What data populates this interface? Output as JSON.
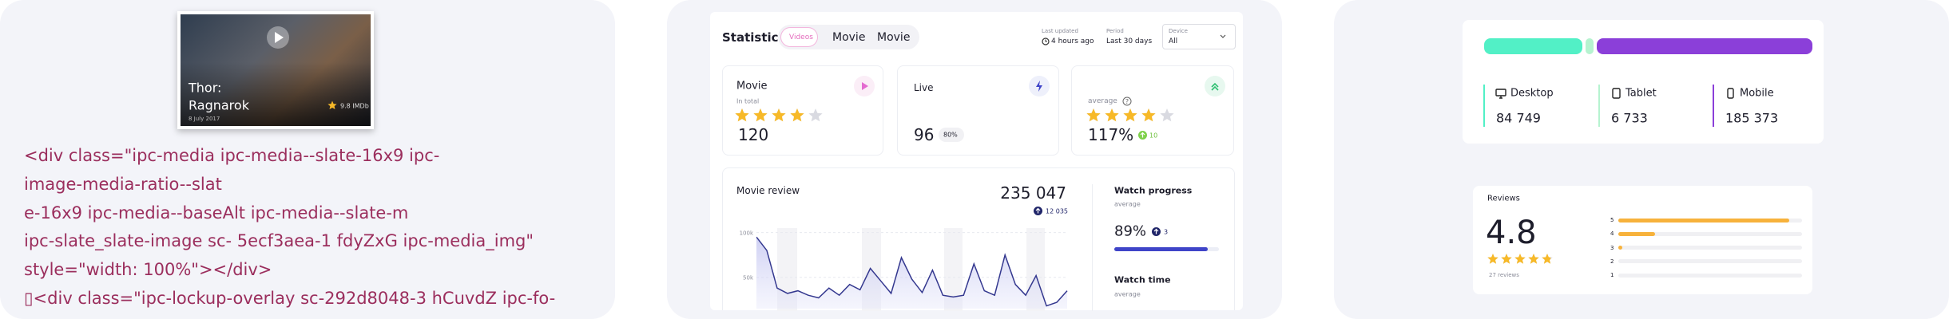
{
  "media_card": {
    "title_line1": "Thor:",
    "title_line2": "Ragnarok",
    "date": "8 July 2017",
    "rating": "9.8 IMDb"
  },
  "code_lines": [
    "<div class=\"ipc-media ipc-media--slate-16x9 ipc-",
    "image-media-ratio--slat",
    "e-16x9 ipc-media--baseAlt ipc-media--slate-m",
    "ipc-slate_slate-image sc- 5ecf3aea-1 fdyZxG ipc-media_img\"",
    "style=\"width: 100%\"></div>",
    "▯<div class=\"ipc-lockup-overlay sc-292d8048-3 hCuvdZ ipc-fo-"
  ],
  "statistics": {
    "title": "Statistics",
    "tabs": [
      "Videos",
      "Movie",
      "Movie"
    ],
    "last_updated": {
      "label": "Last updated",
      "value": "4 hours ago"
    },
    "period": {
      "label": "Period",
      "value": "Last 30 days"
    },
    "device": {
      "label": "Device",
      "value": "All"
    },
    "cards": [
      {
        "title": "Movie",
        "subtitle": "In total",
        "rating": 4,
        "value": 120
      },
      {
        "title": "Live",
        "value": 96,
        "badge": "80%"
      },
      {
        "title": "average",
        "rating": 4,
        "value": "117%",
        "change": 10
      }
    ],
    "review": {
      "title": "Movie review",
      "total": "235 047",
      "badge": "12 035",
      "chart": {
        "type": "line",
        "color": "#34388f",
        "values": [
          95000,
          80000,
          38000,
          32000,
          35000,
          30000,
          27000,
          38000,
          30000,
          42000,
          36000,
          60000,
          46000,
          32000,
          72000,
          48000,
          33000,
          58000,
          30000,
          28000,
          30000,
          65000,
          35000,
          30000,
          75000,
          42000,
          30000,
          52000,
          18000,
          22000,
          35000
        ],
        "ylim": [
          15000,
          105000
        ],
        "yticks": [
          {
            "value": 100000,
            "label": "100k"
          },
          {
            "value": 50000,
            "label": "50k"
          }
        ]
      }
    },
    "watch_progress": {
      "title": "Watch progress",
      "subtitle": "average",
      "value": 89,
      "label": "89%",
      "badge": 3
    },
    "watch_time": {
      "title": "Watch time",
      "subtitle": "average"
    }
  },
  "devices": {
    "items": [
      {
        "name": "Desktop",
        "value": 84749,
        "label": "84 749",
        "color": "#52f0c6"
      },
      {
        "name": "Tablet",
        "value": 6733,
        "label": "6 733",
        "color": "#b6f3d0"
      },
      {
        "name": "Mobile",
        "value": 185373,
        "label": "185 373",
        "color": "#8b3fd9"
      }
    ]
  },
  "reviews": {
    "title": "Reviews",
    "score": 4.8,
    "count": "27 reviews",
    "breakdown": [
      {
        "stars": 5,
        "share": 93
      },
      {
        "stars": 4,
        "share": 20
      },
      {
        "stars": 3,
        "share": 2
      },
      {
        "stars": 2,
        "share": 0
      },
      {
        "stars": 1,
        "share": 0
      }
    ]
  }
}
